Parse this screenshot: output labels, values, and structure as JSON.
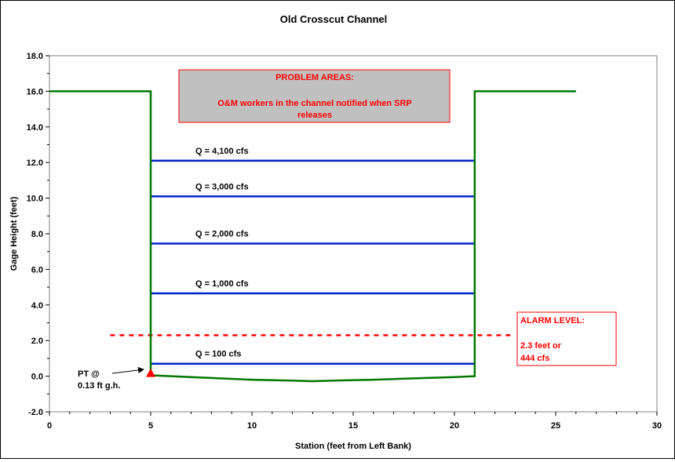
{
  "chart_data": {
    "type": "line",
    "title": "Old Crosscut Channel",
    "xlabel": "Station (feet from Left Bank)",
    "ylabel": "Gage Height (feet)",
    "xlim": [
      0,
      30
    ],
    "ylim": [
      -2.0,
      18.0
    ],
    "x_ticks": [
      "0",
      "5",
      "10",
      "15",
      "20",
      "25",
      "30"
    ],
    "y_ticks": [
      "-2.0",
      "0.0",
      "2.0",
      "4.0",
      "6.0",
      "8.0",
      "10.0",
      "12.0",
      "14.0",
      "16.0",
      "18.0"
    ],
    "grid": false,
    "channel_color": "#007700",
    "flow_color": "#0022cc",
    "alarm_color": "#ff0000",
    "channel_profile": {
      "x": [
        0,
        5,
        5,
        6,
        8,
        10,
        12,
        13,
        14,
        16,
        18,
        20,
        21,
        21,
        26
      ],
      "y": [
        16.0,
        16.0,
        0.05,
        0.0,
        -0.1,
        -0.2,
        -0.25,
        -0.28,
        -0.25,
        -0.2,
        -0.12,
        -0.05,
        0.0,
        16.0,
        16.0
      ]
    },
    "flow_levels": [
      {
        "label": "Q = 4,100 cfs",
        "y": 12.1,
        "x": [
          5,
          21
        ]
      },
      {
        "label": "Q = 3,000 cfs",
        "y": 10.1,
        "x": [
          5,
          21
        ]
      },
      {
        "label": "Q = 2,000 cfs",
        "y": 7.45,
        "x": [
          5,
          21
        ]
      },
      {
        "label": "Q = 1,000 cfs",
        "y": 4.65,
        "x": [
          5,
          21
        ]
      },
      {
        "label": "Q = 100 cfs",
        "y": 0.7,
        "x": [
          5,
          21
        ]
      }
    ],
    "alarm_level": {
      "y": 2.3,
      "x": [
        3,
        23
      ]
    },
    "pt_marker": {
      "x": 5,
      "y": 0.13
    },
    "annotations": {
      "problem_title": "PROBLEM AREAS:",
      "problem_text_line1": "O&M workers in the channel notified when SRP",
      "problem_text_line2": "releases",
      "alarm_title": "ALARM LEVEL:",
      "alarm_line1": "2.3 feet or",
      "alarm_line2": "444 cfs",
      "pt_line1": "PT @",
      "pt_line2": "0.13 ft g.h."
    }
  }
}
